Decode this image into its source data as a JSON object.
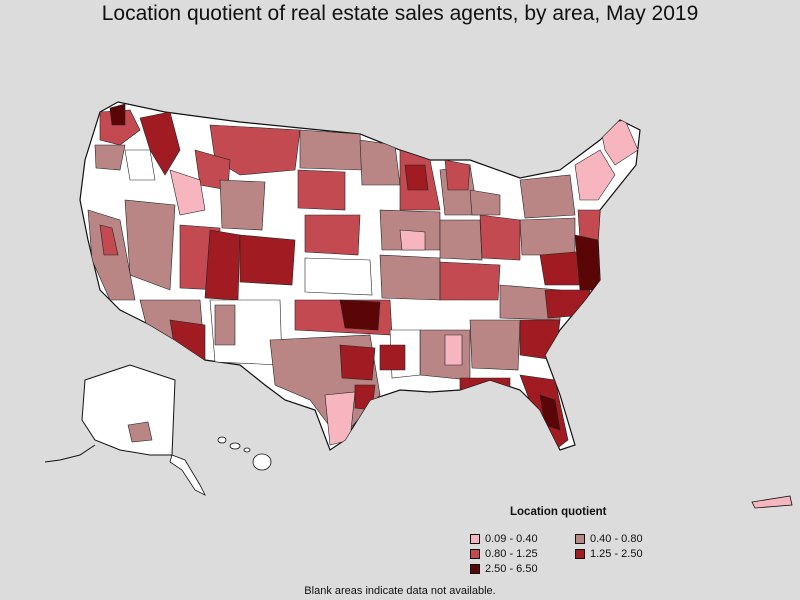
{
  "title": "Location quotient of real estate sales agents, by area, May 2019",
  "legend": {
    "title": "Location quotient",
    "items": [
      {
        "label": "0.09 - 0.40",
        "color": "#f7b6bf"
      },
      {
        "label": "0.40 - 0.80",
        "color": "#b98585"
      },
      {
        "label": "0.80 - 1.25",
        "color": "#c44a52"
      },
      {
        "label": "1.25 - 2.50",
        "color": "#a01c22"
      },
      {
        "label": "2.50 - 6.50",
        "color": "#5a0606"
      }
    ]
  },
  "note": "Blank areas indicate data not available.",
  "colors": {
    "background": "#dcdcdc",
    "no_data": "#ffffff",
    "border": "#111111"
  }
}
